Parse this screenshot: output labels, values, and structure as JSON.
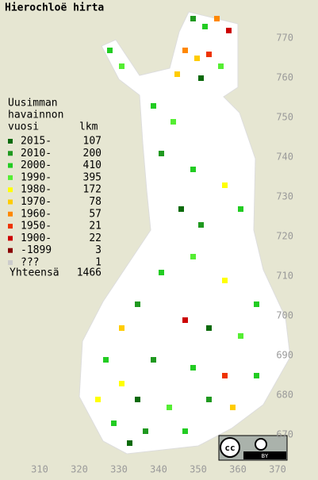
{
  "title": "Hierochloë hirta",
  "legend": {
    "heading": [
      "Uusimman",
      "havainnon",
      "vuosi"
    ],
    "count_header": "lkm",
    "entries": [
      {
        "label": "2015-",
        "count": 107,
        "color": "#0b6a0b"
      },
      {
        "label": "2010-",
        "count": 200,
        "color": "#1f991f"
      },
      {
        "label": "2000-",
        "count": 410,
        "color": "#22cc22"
      },
      {
        "label": "1990-",
        "count": 395,
        "color": "#55ee33"
      },
      {
        "label": "1980-",
        "count": 172,
        "color": "#ffff00"
      },
      {
        "label": "1970-",
        "count": 78,
        "color": "#ffcc00"
      },
      {
        "label": "1960-",
        "count": 57,
        "color": "#ff8800"
      },
      {
        "label": "1950-",
        "count": 21,
        "color": "#ee3300"
      },
      {
        "label": "1900-",
        "count": 22,
        "color": "#cc0000"
      },
      {
        "label": "-1899",
        "count": 3,
        "color": "#880000"
      },
      {
        "label": "???",
        "count": 1,
        "color": "#cccccc"
      }
    ],
    "total_label": "Yhteensä",
    "total": 1466
  },
  "x_labels": [
    310,
    320,
    330,
    340,
    350,
    360,
    370
  ],
  "y_labels": [
    770,
    760,
    750,
    740,
    730,
    720,
    710,
    700,
    690,
    680,
    670
  ],
  "license": {
    "cc": "cc",
    "by": "BY"
  }
}
